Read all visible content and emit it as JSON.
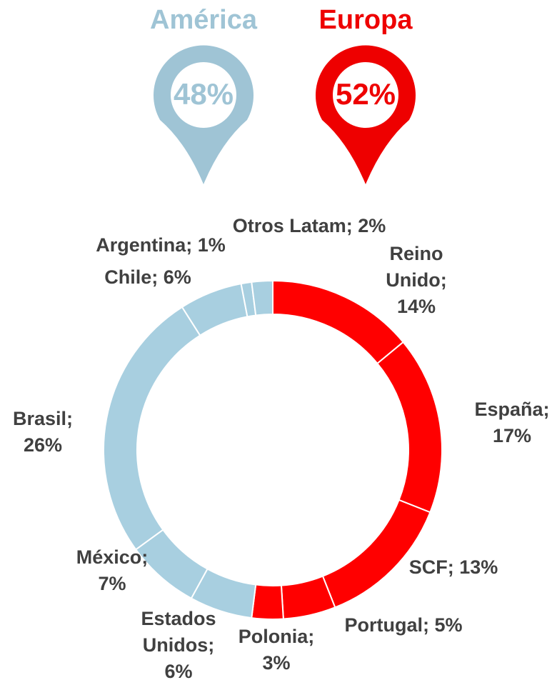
{
  "chart_data": [
    {
      "type": "pins",
      "categories": [
        "América",
        "Europa"
      ],
      "values": [
        48,
        52
      ],
      "value_labels": [
        "48%",
        "52%"
      ],
      "colors": [
        "#9fc4d5",
        "#ee0000"
      ]
    },
    {
      "type": "donut",
      "values": [
        14,
        17,
        13,
        5,
        3,
        6,
        7,
        26,
        6,
        1,
        2
      ],
      "value_labels": [
        [
          "Reino",
          "Unido;",
          "14%"
        ],
        [
          "España;",
          "17%"
        ],
        [
          "SCF; 13%"
        ],
        [
          "Portugal; 5%"
        ],
        [
          "Polonia;",
          "3%"
        ],
        [
          "Estados",
          "Unidos;",
          "6%"
        ],
        [
          "México;",
          "7%"
        ],
        [
          "Brasil;",
          "26%"
        ],
        [
          "Chile; 6%"
        ],
        [
          "Argentina; 1%"
        ],
        [
          "Otros Latam; 2%"
        ]
      ],
      "colors": [
        "#ff0000",
        "#ff0000",
        "#ff0000",
        "#ff0000",
        "#ff0000",
        "#a8cfe0",
        "#a8cfe0",
        "#a8cfe0",
        "#a8cfe0",
        "#a8cfe0",
        "#a8cfe0"
      ]
    }
  ]
}
